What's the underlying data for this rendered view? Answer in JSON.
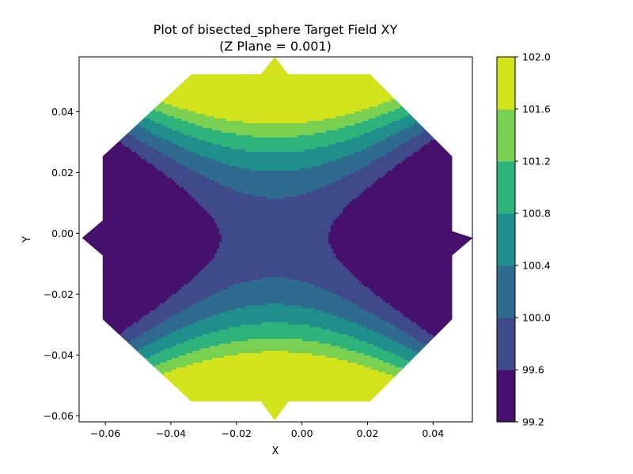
{
  "chart_data": {
    "type": "contour",
    "title_line1": "Plot of bisected_sphere Target Field XY",
    "title_line2": "(Z Plane = 0.001)",
    "xlabel": "X",
    "ylabel": "Y",
    "xlim": [
      -0.068,
      0.052
    ],
    "ylim": [
      -0.062,
      0.058
    ],
    "x_ticks": [
      -0.06,
      -0.04,
      -0.02,
      0.0,
      0.02,
      0.04
    ],
    "x_tick_labels": [
      "−0.06",
      "−0.04",
      "−0.02",
      "0.00",
      "0.02",
      "0.04"
    ],
    "y_ticks": [
      -0.06,
      -0.04,
      -0.02,
      0.0,
      0.02,
      0.04
    ],
    "y_tick_labels": [
      "−0.06",
      "−0.04",
      "−0.02",
      "0.00",
      "0.02",
      "0.04"
    ],
    "colorbar": {
      "levels": [
        99.2,
        99.6,
        100.0,
        100.4,
        100.8,
        101.2,
        101.6,
        102.0
      ],
      "labels": [
        "99.2",
        "99.6",
        "100.0",
        "100.4",
        "100.8",
        "101.2",
        "101.6",
        "102.0"
      ],
      "colors": [
        "#46116c",
        "#3f4a8a",
        "#2f6b8e",
        "#208f8c",
        "#2eb37c",
        "#7ad151",
        "#d2e21b"
      ]
    },
    "domain_outline": [
      [
        -0.0337,
        0.0523
      ],
      [
        -0.0125,
        0.0523
      ],
      [
        -0.0083,
        0.058
      ],
      [
        -0.0042,
        0.0523
      ],
      [
        0.0208,
        0.0523
      ],
      [
        0.0458,
        0.0253
      ],
      [
        0.0458,
        0.0007
      ],
      [
        0.0521,
        -0.0015
      ],
      [
        0.0458,
        -0.0073
      ],
      [
        0.0458,
        -0.0283
      ],
      [
        0.0208,
        -0.0553
      ],
      [
        -0.0042,
        -0.0553
      ],
      [
        -0.0083,
        -0.0615
      ],
      [
        -0.0125,
        -0.0553
      ],
      [
        -0.0337,
        -0.0553
      ],
      [
        -0.0608,
        -0.0283
      ],
      [
        -0.0608,
        -0.0073
      ],
      [
        -0.0671,
        -0.0015
      ],
      [
        -0.0608,
        0.0042
      ],
      [
        -0.0608,
        0.0253
      ]
    ],
    "field_model": {
      "center": [
        -0.0083,
        -0.0015
      ],
      "base": 99.78,
      "y_quadratic_coefficient": 1300,
      "x_quadratic_coefficient": -660
    }
  }
}
